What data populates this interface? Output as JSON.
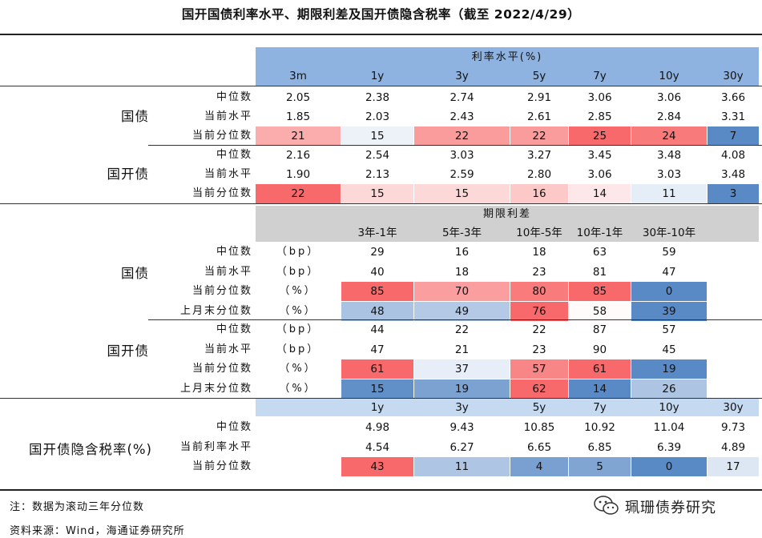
{
  "title": "国开国债利率水平、期限利差及国开债隐含税率（截至 2022/4/29）",
  "colors": {
    "header_blue": "#8fb3e0",
    "header_gray": "#d0d0d0",
    "header_lightblue": "#c5d9f1",
    "high": "#f8696b",
    "low": "#5a8ac6",
    "mid": "#ffffff"
  },
  "section1": {
    "caption": "利率水平(%)",
    "columns": [
      "3m",
      "1y",
      "3y",
      "5y",
      "7y",
      "10y",
      "30y"
    ],
    "groups": [
      {
        "name": "国债",
        "rows": [
          {
            "label": "中位数",
            "values": [
              "2.05",
              "2.38",
              "2.74",
              "2.91",
              "3.06",
              "3.06",
              "3.66"
            ]
          },
          {
            "label": "当前水平",
            "values": [
              "1.85",
              "2.03",
              "2.43",
              "2.61",
              "2.85",
              "2.84",
              "3.31"
            ]
          },
          {
            "label": "当前分位数",
            "values": [
              "21",
              "15",
              "22",
              "22",
              "25",
              "24",
              "7"
            ],
            "heat": true
          }
        ]
      },
      {
        "name": "国开债",
        "rows": [
          {
            "label": "中位数",
            "values": [
              "2.16",
              "2.54",
              "3.03",
              "3.27",
              "3.45",
              "3.48",
              "4.08"
            ]
          },
          {
            "label": "当前水平",
            "values": [
              "1.90",
              "2.13",
              "2.59",
              "2.80",
              "3.06",
              "3.03",
              "3.48"
            ]
          },
          {
            "label": "当前分位数",
            "values": [
              "22",
              "15",
              "15",
              "16",
              "14",
              "11",
              "3"
            ],
            "heat": true
          }
        ]
      }
    ]
  },
  "section2": {
    "caption": "期限利差",
    "columns": [
      "3年-1年",
      "5年-3年",
      "10年-5年",
      "10年-1年",
      "30年-10年"
    ],
    "groups": [
      {
        "name": "国债",
        "rows": [
          {
            "label": "中位数",
            "unit": "（bp）",
            "values": [
              "29",
              "16",
              "18",
              "63",
              "59"
            ]
          },
          {
            "label": "当前水平",
            "unit": "（bp）",
            "values": [
              "40",
              "18",
              "23",
              "81",
              "47"
            ]
          },
          {
            "label": "当前分位数",
            "unit": "（%）",
            "values": [
              "85",
              "70",
              "80",
              "85",
              "0"
            ],
            "heat": true
          },
          {
            "label": "上月末分位数",
            "unit": "（%）",
            "values": [
              "48",
              "49",
              "76",
              "58",
              "39"
            ],
            "heat": true
          }
        ]
      },
      {
        "name": "国开债",
        "rows": [
          {
            "label": "中位数",
            "unit": "（bp）",
            "values": [
              "44",
              "22",
              "22",
              "87",
              "57"
            ]
          },
          {
            "label": "当前水平",
            "unit": "（bp）",
            "values": [
              "47",
              "21",
              "23",
              "90",
              "45"
            ]
          },
          {
            "label": "当前分位数",
            "unit": "（%）",
            "values": [
              "61",
              "37",
              "57",
              "61",
              "19"
            ],
            "heat": true
          },
          {
            "label": "上月末分位数",
            "unit": "（%）",
            "values": [
              "15",
              "19",
              "62",
              "14",
              "26"
            ],
            "heat": true
          }
        ]
      }
    ]
  },
  "section3": {
    "name": "国开债隐含税率(%)",
    "columns": [
      "1y",
      "3y",
      "5y",
      "7y",
      "10y",
      "30y"
    ],
    "rows": [
      {
        "label": "中位数",
        "values": [
          "4.98",
          "9.43",
          "10.85",
          "10.92",
          "11.04",
          "9.73"
        ]
      },
      {
        "label": "当前利率水平",
        "values": [
          "4.54",
          "6.27",
          "6.65",
          "6.85",
          "6.39",
          "4.89"
        ]
      },
      {
        "label": "当前分位数",
        "values": [
          "43",
          "11",
          "4",
          "5",
          "0",
          "17"
        ],
        "heat": true
      }
    ]
  },
  "footer": {
    "note": "注：数据为滚动三年分位数",
    "source": "资料来源：Wind，海通证券研究所",
    "brand": "珮珊债券研究"
  }
}
